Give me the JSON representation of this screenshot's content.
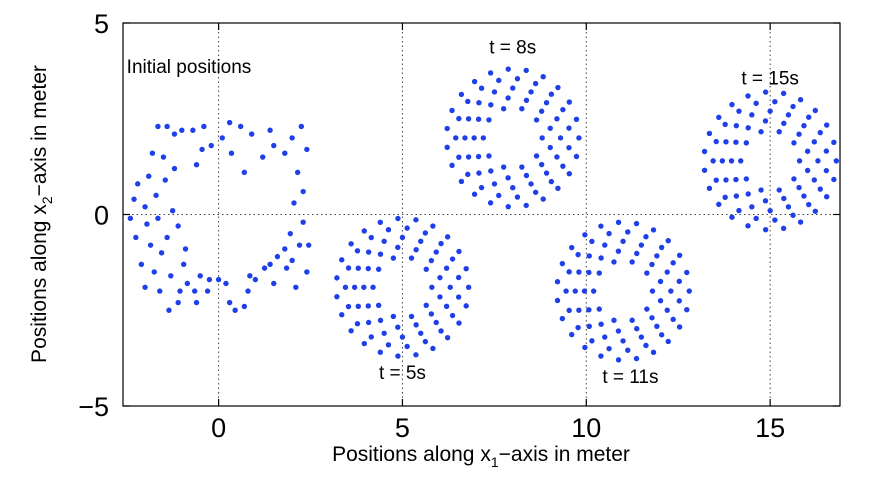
{
  "chart_data": {
    "type": "scatter",
    "title": "",
    "xlabel": {
      "pre": "Positions along x",
      "sub": "1",
      "post": "−axis in meter"
    },
    "ylabel": {
      "pre": "Positions along x",
      "sub": "2",
      "post": "−axis in meter"
    },
    "xlim": [
      -2.6,
      16.9
    ],
    "ylim": [
      -5,
      5
    ],
    "xticks": [
      0,
      5,
      10,
      15
    ],
    "yticks": [
      -5,
      0,
      5
    ],
    "xtick_labels": [
      "0",
      "5",
      "10",
      "15"
    ],
    "ytick_labels": [
      "−5",
      "0",
      "5"
    ],
    "grid": true,
    "marker_color": "#1f3fe8",
    "annotations": [
      {
        "text": "Initial positions",
        "x": -2.5,
        "y": 3.7
      },
      {
        "text": "t = 8s",
        "x": 8.0,
        "y": 4.2
      },
      {
        "text": "t = 15s",
        "x": 15.0,
        "y": 3.4
      },
      {
        "text": "t = 5s",
        "x": 5.0,
        "y": -4.3
      },
      {
        "text": "t = 11s",
        "x": 11.2,
        "y": -4.4
      }
    ],
    "series": [
      {
        "points": [
          [
            -2.4,
            -0.1
          ],
          [
            -2.3,
            0.4
          ],
          [
            -2.2,
            0.8
          ],
          [
            -2.25,
            -0.6
          ],
          [
            -2.1,
            -1.3
          ],
          [
            -2.0,
            -1.9
          ],
          [
            -2.0,
            0.2
          ],
          [
            -1.95,
            -0.25
          ],
          [
            -1.9,
            1.0
          ],
          [
            -1.85,
            -0.8
          ],
          [
            -1.8,
            1.6
          ],
          [
            -1.75,
            -1.5
          ],
          [
            -1.7,
            0.5
          ],
          [
            -1.65,
            -0.1
          ],
          [
            -1.6,
            -2.0
          ],
          [
            -1.55,
            -1.0
          ],
          [
            -1.5,
            1.5
          ],
          [
            -1.45,
            0.9
          ],
          [
            -1.4,
            -0.6
          ],
          [
            -1.35,
            -2.5
          ],
          [
            -1.3,
            -1.6
          ],
          [
            -1.25,
            0.1
          ],
          [
            -1.2,
            1.2
          ],
          [
            -1.1,
            -2.3
          ],
          [
            -1.05,
            -2.0
          ],
          [
            -0.95,
            -1.3
          ],
          [
            -0.9,
            -0.9
          ],
          [
            -0.85,
            -1.8
          ],
          [
            -0.65,
            -2.0
          ],
          [
            -0.6,
            -2.3
          ],
          [
            -0.5,
            -1.6
          ],
          [
            -0.3,
            -2.0
          ],
          [
            -1.1,
            -0.3
          ],
          [
            -1.65,
            2.3
          ],
          [
            -1.4,
            2.3
          ],
          [
            -1.2,
            2.1
          ],
          [
            -1.0,
            2.2
          ],
          [
            -0.7,
            2.2
          ],
          [
            -0.4,
            2.3
          ],
          [
            -0.45,
            1.7
          ],
          [
            -0.2,
            1.8
          ],
          [
            -0.6,
            1.3
          ],
          [
            -0.25,
            -1.7
          ],
          [
            0.0,
            -1.7
          ],
          [
            0.2,
            -1.8
          ],
          [
            0.3,
            -2.3
          ],
          [
            0.45,
            -2.5
          ],
          [
            0.7,
            -2.4
          ],
          [
            0.8,
            -2.0
          ],
          [
            0.85,
            -1.6
          ],
          [
            1.0,
            -1.7
          ],
          [
            1.25,
            -1.4
          ],
          [
            1.4,
            -1.3
          ],
          [
            1.5,
            -1.8
          ],
          [
            1.6,
            -1.1
          ],
          [
            1.8,
            -0.9
          ],
          [
            1.85,
            -1.4
          ],
          [
            1.95,
            -0.5
          ],
          [
            2.0,
            -1.2
          ],
          [
            2.05,
            0.3
          ],
          [
            2.1,
            -1.9
          ],
          [
            2.15,
            1.1
          ],
          [
            2.2,
            -0.8
          ],
          [
            2.3,
            -0.2
          ],
          [
            2.3,
            0.6
          ],
          [
            2.4,
            -1.5
          ],
          [
            2.45,
            -0.8
          ],
          [
            2.4,
            1.7
          ],
          [
            2.25,
            2.3
          ],
          [
            2.0,
            2.0
          ],
          [
            1.8,
            1.6
          ],
          [
            1.5,
            1.8
          ],
          [
            1.2,
            1.5
          ],
          [
            0.9,
            2.1
          ],
          [
            0.6,
            2.3
          ],
          [
            0.3,
            2.4
          ],
          [
            0.1,
            2.0
          ],
          [
            0.35,
            1.6
          ],
          [
            0.7,
            1.1
          ],
          [
            1.4,
            2.2
          ]
        ]
      },
      {
        "center": [
          5,
          -1.9
        ],
        "ring_radii": [
          0.8,
          1.05,
          1.3,
          1.55,
          1.8
        ],
        "ring_counts": [
          10,
          13,
          16,
          19,
          23
        ]
      },
      {
        "center": [
          8,
          2.0
        ],
        "ring_radii": [
          0.8,
          1.05,
          1.3,
          1.55,
          1.8
        ],
        "ring_counts": [
          10,
          13,
          16,
          19,
          23
        ]
      },
      {
        "center": [
          11,
          -2.0
        ],
        "ring_radii": [
          0.8,
          1.05,
          1.3,
          1.55,
          1.8
        ],
        "ring_counts": [
          10,
          13,
          16,
          19,
          23
        ]
      },
      {
        "center": [
          15,
          1.4
        ],
        "ring_radii": [
          0.8,
          1.05,
          1.3,
          1.55,
          1.8
        ],
        "ring_counts": [
          10,
          13,
          16,
          19,
          23
        ]
      }
    ]
  }
}
